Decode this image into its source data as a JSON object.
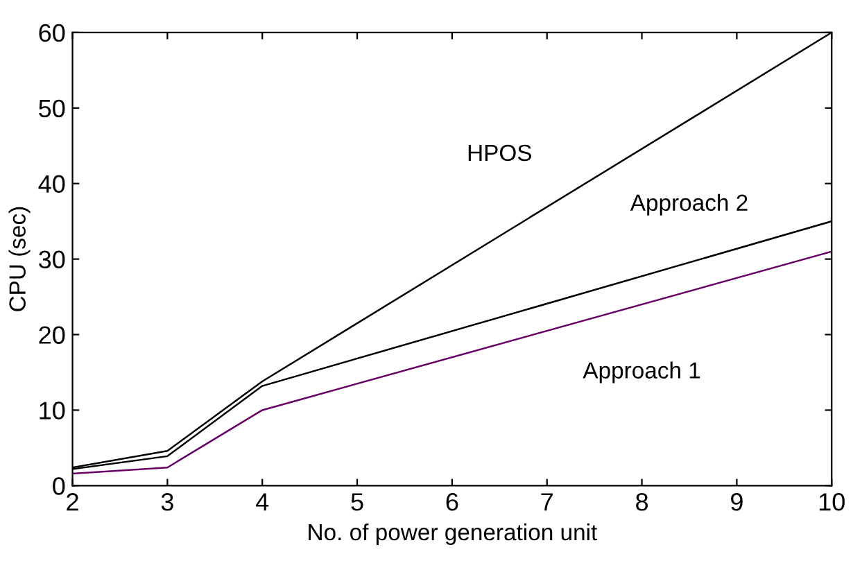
{
  "chart_data": {
    "type": "line",
    "xlabel": "No. of power generation unit",
    "ylabel": "CPU (sec)",
    "x": [
      2,
      3,
      4,
      10
    ],
    "series": [
      {
        "name": "HPOS",
        "color": "#000000",
        "values": [
          2.4,
          4.6,
          13.8,
          60
        ]
      },
      {
        "name": "Approach 2",
        "color": "#000000",
        "values": [
          2.2,
          3.9,
          13.2,
          35
        ]
      },
      {
        "name": "Approach 1",
        "color": "#660066",
        "values": [
          1.6,
          2.4,
          10,
          31
        ]
      }
    ],
    "xlim": [
      2,
      10
    ],
    "ylim": [
      0,
      60
    ],
    "xticks": [
      2,
      3,
      4,
      5,
      6,
      7,
      8,
      9,
      10
    ],
    "yticks": [
      0,
      10,
      20,
      30,
      40,
      50,
      60
    ],
    "grid": false,
    "legend": false,
    "marker": "none",
    "line_style": "solid"
  }
}
